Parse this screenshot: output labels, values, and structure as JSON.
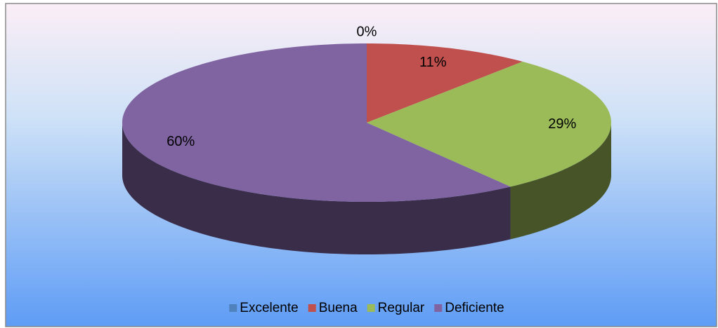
{
  "chart_data": {
    "type": "pie",
    "categories": [
      "Excelente",
      "Buena",
      "Regular",
      "Deficiente"
    ],
    "values": [
      0,
      11,
      29,
      60
    ],
    "value_labels": [
      "0%",
      "11%",
      "29%",
      "60%"
    ],
    "colors": [
      "#4f81bd",
      "#c0504d",
      "#9bbb59",
      "#8064a2"
    ],
    "legend": "bottom"
  }
}
